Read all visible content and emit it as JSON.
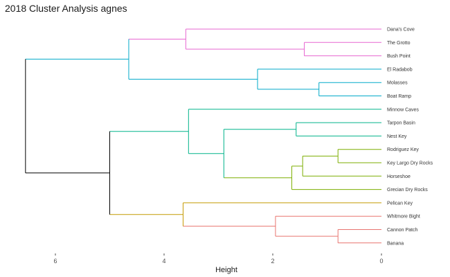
{
  "chart_data": {
    "type": "dendrogram",
    "title": "2018 Cluster Analysis agnes",
    "xlabel": "Height",
    "orientation": "horizontal",
    "x_reversed": true,
    "xlim": [
      6.6,
      0
    ],
    "xticks": [
      6,
      4,
      2,
      0
    ],
    "grid": false,
    "leaves": [
      "Dana's Cove",
      "The Grotto",
      "Bush Point",
      "El Radabob",
      "Molasses",
      "Boat Ramp",
      "Minnow Caves",
      "Tarpon Basin",
      "Nest Key",
      "Rodriguez Key",
      "Key Largo Dry Rocks",
      "Horseshoe",
      "Grecian Dry Rocks",
      "Pelican Key",
      "Whitmore Bight",
      "Cannon Patch",
      "Banana"
    ],
    "merges": [
      {
        "id": "m1",
        "children": [
          "Cannon Patch",
          "Banana"
        ],
        "height": 0.8,
        "color": "#e8746f"
      },
      {
        "id": "m2",
        "children": [
          "Rodriguez Key",
          "Key Largo Dry Rocks"
        ],
        "height": 0.8,
        "color": "#7cae00"
      },
      {
        "id": "m3",
        "children": [
          "Molasses",
          "Boat Ramp"
        ],
        "height": 1.15,
        "color": "#00a9c9"
      },
      {
        "id": "m4",
        "children": [
          "The Grotto",
          "Bush Point"
        ],
        "height": 1.42,
        "color": "#e766d1"
      },
      {
        "id": "m5",
        "children": [
          "m2",
          "Horseshoe"
        ],
        "height": 1.45,
        "color": "#7cae00"
      },
      {
        "id": "m6",
        "children": [
          "Tarpon Basin",
          "Nest Key"
        ],
        "height": 1.57,
        "color": "#00b38a"
      },
      {
        "id": "m7",
        "children": [
          "m5",
          "Grecian Dry Rocks"
        ],
        "height": 1.65,
        "color": "#7cae00"
      },
      {
        "id": "m8",
        "children": [
          "Whitmore Bight",
          "m1"
        ],
        "height": 1.95,
        "color": "#e8746f"
      },
      {
        "id": "m9",
        "children": [
          "El Radabob",
          "m3"
        ],
        "height": 2.28,
        "color": "#00a9c9"
      },
      {
        "id": "m10",
        "children": [
          "m6",
          "m7"
        ],
        "height": 2.9,
        "color": "#00b38a"
      },
      {
        "id": "m11",
        "children": [
          "Minnow Caves",
          "m10"
        ],
        "height": 3.55,
        "color": "#00b38a"
      },
      {
        "id": "m12",
        "children": [
          "Dana's Cove",
          "m4"
        ],
        "height": 3.6,
        "color": "#e766d1"
      },
      {
        "id": "m13",
        "children": [
          "Pelican Key",
          "m8"
        ],
        "height": 3.65,
        "color": "#c49a00"
      },
      {
        "id": "m14",
        "children": [
          "m12",
          "m9"
        ],
        "height": 4.65,
        "color": "#00a9c9"
      },
      {
        "id": "m15",
        "children": [
          "m11",
          "m13"
        ],
        "height": 5.0,
        "color": "#000000"
      },
      {
        "id": "m16",
        "children": [
          "m14",
          "m15"
        ],
        "height": 6.55,
        "color": "#000000"
      }
    ],
    "leaf_colors": {
      "Dana's Cove": "#e766d1",
      "The Grotto": "#e766d1",
      "Bush Point": "#e766d1",
      "El Radabob": "#00a9c9",
      "Molasses": "#00a9c9",
      "Boat Ramp": "#00a9c9",
      "Minnow Caves": "#00b38a",
      "Tarpon Basin": "#00b38a",
      "Nest Key": "#00b38a",
      "Rodriguez Key": "#7cae00",
      "Key Largo Dry Rocks": "#7cae00",
      "Horseshoe": "#7cae00",
      "Grecian Dry Rocks": "#7cae00",
      "Pelican Key": "#c49a00",
      "Whitmore Bight": "#e8746f",
      "Cannon Patch": "#e8746f",
      "Banana": "#e8746f"
    }
  }
}
